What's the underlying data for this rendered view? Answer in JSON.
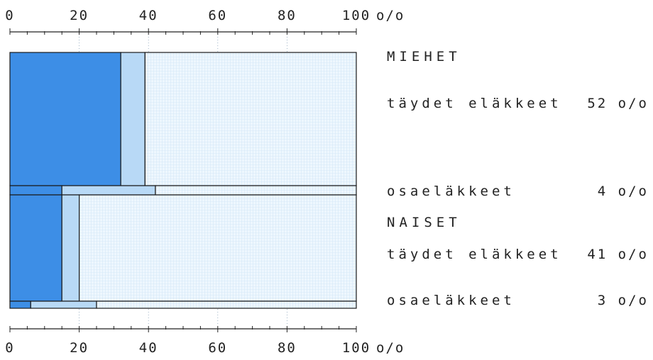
{
  "colors": {
    "dark": "#3d8ee6",
    "light": "#b8d9f6",
    "pale": "#eaf5fd",
    "outline": "#1a1a1a"
  },
  "chart_data": {
    "type": "bar",
    "xlim": [
      0,
      100
    ],
    "x_ticks": [
      "0",
      "20",
      "40",
      "60",
      "80",
      "100"
    ],
    "x_unit": "o/o",
    "stacked": true,
    "groups": [
      {
        "label": "MIEHET",
        "rows": [
          {
            "label": "täydet eläkkeet",
            "pct_label": "52 o/o",
            "dark": 32,
            "light": 7,
            "rest": 61
          },
          {
            "label": "osaeläkkeet",
            "pct_label": "4 o/o",
            "dark": 15,
            "light": 27,
            "rest": 58
          }
        ]
      },
      {
        "label": "NAISET",
        "rows": [
          {
            "label": "täydet eläkkeet",
            "pct_label": "41 o/o",
            "dark": 15,
            "light": 5,
            "rest": 80
          },
          {
            "label": "osaeläkkeet",
            "pct_label": "3 o/o",
            "dark": 6,
            "light": 19,
            "rest": 75
          }
        ]
      }
    ]
  }
}
